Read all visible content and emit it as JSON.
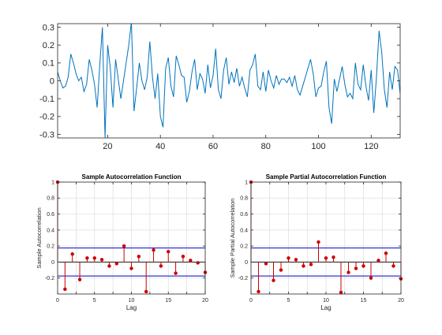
{
  "colors": {
    "series_line": "#0072BD",
    "stem": "#cc0000",
    "bounds": "#0000cc",
    "zero_line": "#000000",
    "grid": "#dddddd",
    "axis": "#262626"
  },
  "chart_data": [
    {
      "type": "line",
      "title": "",
      "xlabel": "",
      "ylabel": "",
      "xlim": [
        1,
        131
      ],
      "ylim": [
        -0.32,
        0.32
      ],
      "grid": false,
      "xticks": [
        20,
        40,
        60,
        80,
        100,
        120
      ],
      "yticks": [
        -0.3,
        -0.2,
        -0.1,
        0,
        0.1,
        0.2,
        0.3
      ],
      "xtick_labels": [
        "20",
        "40",
        "60",
        "80",
        "100",
        "120"
      ],
      "ytick_labels": [
        "-0.3",
        "-0.2",
        "-0.1",
        "0",
        "0.1",
        "0.2",
        "0.3"
      ],
      "series": [
        {
          "values": [
            0.05,
            0.0,
            -0.04,
            -0.03,
            0.02,
            0.15,
            0.1,
            0.04,
            0.0,
            0.02,
            -0.06,
            -0.02,
            0.12,
            0.06,
            -0.02,
            -0.15,
            0.09,
            0.3,
            -0.32,
            0.2,
            0.07,
            -0.15,
            0.12,
            0.01,
            -0.1,
            0.0,
            0.1,
            0.2,
            0.33,
            -0.17,
            -0.04,
            0.1,
            0.0,
            -0.05,
            0.02,
            0.22,
            0.02,
            -0.1,
            0.04,
            -0.2,
            -0.26,
            0.07,
            0.13,
            -0.03,
            -0.09,
            0.14,
            0.09,
            0.03,
            0.02,
            -0.12,
            -0.06,
            0.05,
            0.12,
            -0.05,
            0.04,
            0.01,
            -0.07,
            0.09,
            -0.04,
            0.03,
            0.18,
            -0.05,
            -0.1,
            0.06,
            0.13,
            -0.02,
            0.05,
            -0.01,
            0.07,
            -0.03,
            0.02,
            -0.04,
            -0.09,
            0.06,
            0.09,
            0.15,
            -0.03,
            -0.05,
            0.05,
            -0.06,
            0.06,
            0.0,
            -0.04,
            0.03,
            -0.02,
            0.01,
            0.01,
            -0.01,
            0.02,
            -0.03,
            0.03,
            -0.05,
            -0.08,
            -0.03,
            0.02,
            0.07,
            0.12,
            0.04,
            -0.09,
            -0.04,
            -0.03,
            0.05,
            0.11,
            -0.15,
            -0.24,
            0.01,
            -0.06,
            0.01,
            0.08,
            -0.02,
            -0.09,
            -0.07,
            -0.1,
            0.1,
            -0.02,
            -0.05,
            0.09,
            -0.03,
            -0.11,
            0.06,
            -0.18,
            0.02,
            0.28,
            0.16,
            -0.05,
            -0.15,
            0.05,
            -0.05,
            0.08,
            0.06,
            -0.07
          ]
        }
      ]
    },
    {
      "type": "stem",
      "title": "Sample Autocorrelation Function",
      "xlabel": "Lag",
      "ylabel": "Sample Autocorrelation",
      "xlim": [
        0,
        20
      ],
      "ylim": [
        -0.4,
        1
      ],
      "grid": true,
      "xticks": [
        0,
        2.5,
        5,
        7.5,
        10,
        12.5,
        15,
        17.5,
        20
      ],
      "yticks": [
        -0.2,
        0,
        0.2,
        0.4,
        0.6,
        0.8,
        1
      ],
      "xtick_labels": [
        "0",
        "",
        "5",
        "",
        "10",
        "",
        "15",
        "",
        "20"
      ],
      "ytick_labels": [
        "-0.2",
        "0",
        "0.2",
        "0.4",
        "0.6",
        "0.8",
        "1"
      ],
      "bounds": [
        0.175,
        -0.175
      ],
      "x": [
        0,
        1,
        2,
        3,
        4,
        5,
        6,
        7,
        8,
        9,
        10,
        11,
        12,
        13,
        14,
        15,
        16,
        17,
        18,
        19,
        20
      ],
      "values": [
        1.0,
        -0.34,
        0.1,
        -0.22,
        0.05,
        0.05,
        0.03,
        -0.05,
        -0.02,
        0.2,
        -0.08,
        0.07,
        -0.37,
        0.15,
        -0.05,
        0.13,
        -0.14,
        0.07,
        0.02,
        -0.01,
        -0.13
      ]
    },
    {
      "type": "stem",
      "title": "Sample Partial Autocorrelation Function",
      "xlabel": "Lag",
      "ylabel": "Sample Partial Autocorrelation",
      "xlim": [
        0,
        20
      ],
      "ylim": [
        -0.4,
        1
      ],
      "grid": true,
      "xticks": [
        0,
        2.5,
        5,
        7.5,
        10,
        12.5,
        15,
        17.5,
        20
      ],
      "yticks": [
        -0.2,
        0,
        0.2,
        0.4,
        0.6,
        0.8,
        1
      ],
      "xtick_labels": [
        "0",
        "",
        "5",
        "",
        "10",
        "",
        "15",
        "",
        "20"
      ],
      "ytick_labels": [
        "-0.2",
        "0",
        "0.2",
        "0.4",
        "0.6",
        "0.8",
        "1"
      ],
      "bounds": [
        0.175,
        -0.175
      ],
      "x": [
        0,
        1,
        2,
        3,
        4,
        5,
        6,
        7,
        8,
        9,
        10,
        11,
        12,
        13,
        14,
        15,
        16,
        17,
        18,
        19,
        20
      ],
      "values": [
        1.0,
        -0.37,
        -0.02,
        -0.23,
        -0.1,
        0.05,
        0.03,
        -0.05,
        -0.03,
        0.25,
        0.05,
        0.06,
        -0.38,
        -0.13,
        -0.08,
        -0.05,
        -0.2,
        0.02,
        0.11,
        -0.05,
        -0.21
      ]
    }
  ]
}
